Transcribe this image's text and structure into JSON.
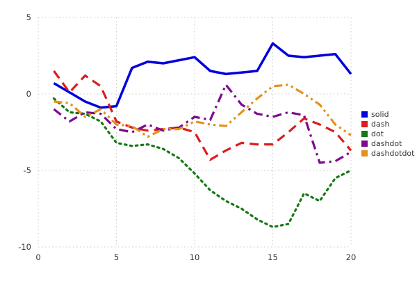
{
  "chart_data": {
    "type": "line",
    "title": "",
    "xlabel": "",
    "ylabel": "",
    "xlim": [
      0,
      20
    ],
    "ylim": [
      -10,
      5
    ],
    "x_ticks": [
      0,
      5,
      10,
      15,
      20
    ],
    "y_ticks": [
      5,
      0,
      -5,
      -10
    ],
    "grid": true,
    "legend_position": "right-middle",
    "x": [
      1,
      2,
      3,
      4,
      5,
      6,
      7,
      8,
      9,
      10,
      11,
      12,
      13,
      14,
      15,
      16,
      17,
      18,
      19,
      20
    ],
    "series": [
      {
        "name": "solid",
        "color": "#0000dd",
        "dash_style": "solid",
        "values": [
          0.7,
          0.1,
          -0.5,
          -0.9,
          -0.8,
          1.7,
          2.1,
          2.0,
          2.2,
          2.4,
          1.5,
          1.3,
          1.4,
          1.5,
          3.3,
          2.5,
          2.4,
          2.5,
          2.6,
          1.3
        ]
      },
      {
        "name": "dash",
        "color": "#dd1c1c",
        "dash_style": "dash",
        "values": [
          1.5,
          0.1,
          1.2,
          0.5,
          -1.8,
          -2.2,
          -2.4,
          -2.3,
          -2.2,
          -2.5,
          -4.3,
          -3.7,
          -3.2,
          -3.3,
          -3.3,
          -2.5,
          -1.6,
          -2.0,
          -2.5,
          -3.7
        ]
      },
      {
        "name": "dot",
        "color": "#167816",
        "dash_style": "dot",
        "values": [
          -0.3,
          -1.2,
          -1.3,
          -1.8,
          -3.2,
          -3.4,
          -3.3,
          -3.6,
          -4.2,
          -5.2,
          -6.3,
          -7.0,
          -7.5,
          -8.2,
          -8.7,
          -8.5,
          -6.5,
          -7.0,
          -5.5,
          -5.0
        ]
      },
      {
        "name": "dashdot",
        "color": "#7d0a8c",
        "dash_style": "dashdot",
        "values": [
          -1.0,
          -1.8,
          -1.2,
          -1.3,
          -2.3,
          -2.5,
          -2.0,
          -2.4,
          -2.2,
          -1.5,
          -1.7,
          0.6,
          -0.7,
          -1.3,
          -1.5,
          -1.2,
          -1.4,
          -4.5,
          -4.4,
          -3.8
        ]
      },
      {
        "name": "dashdotdot",
        "color": "#e2921c",
        "dash_style": "dashdotdot",
        "values": [
          -0.5,
          -0.6,
          -1.5,
          -1.0,
          -2.0,
          -2.1,
          -2.8,
          -2.3,
          -2.3,
          -1.8,
          -2.0,
          -2.1,
          -1.2,
          -0.3,
          0.5,
          0.6,
          0.0,
          -0.7,
          -2.0,
          -2.7
        ]
      }
    ],
    "legend_items": [
      "solid",
      "dash",
      "dot",
      "dashdot",
      "dashdotdot"
    ]
  },
  "style": {
    "grid_color": "#c8c8c8",
    "tick_label_color": "#333333",
    "background": "#ffffff"
  }
}
